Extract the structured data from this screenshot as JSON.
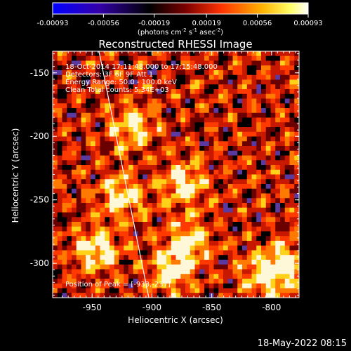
{
  "title": "Reconstructed RHESSI Image",
  "colorbar": {
    "ticks": [
      "-0.00093",
      "-0.00056",
      "-0.00019",
      "0.00019",
      "0.00056",
      "0.00093"
    ],
    "min": -0.00093,
    "max": 0.00093,
    "units": "(photons cm",
    "units_exp1": "-2",
    "units_mid1": " s",
    "units_exp2": "-1",
    "units_mid2": " asec",
    "units_exp3": "-2",
    "units_end": ")",
    "colors": [
      "#0000ff",
      "#3300aa",
      "#000000",
      "#ff5500",
      "#ffff66",
      "#ffffff"
    ]
  },
  "xaxis": {
    "label": "Heliocentric X (arcsec)",
    "ticks": [
      "-950",
      "-900",
      "-850",
      "-800"
    ],
    "range": [
      -983,
      -777
    ]
  },
  "yaxis": {
    "label": "Heliocentric Y (arcsec)",
    "ticks": [
      "-150",
      "-200",
      "-250",
      "-300"
    ],
    "range": [
      -327,
      -133
    ]
  },
  "annotation": {
    "line1": "18-Oct-2014 17:11:48.000 to 17:15:48.000",
    "line2": "Detectors: 3F 6F 9F  Att 1",
    "line3": "Energy Range: 50.0 - 100.0 keV",
    "line4": "Clean    Total counts: 5.34E+03",
    "peak": "Position of Peak = [-933,-237]"
  },
  "image_colors": {
    "deep": "#2a1060",
    "purple": "#5a3aa0",
    "red": "#c81800",
    "orange": "#ff7a00",
    "yellow": "#ffd21a",
    "white": "#fff8d8"
  },
  "limb_color": "#ffffff",
  "timestamp": "18-May-2022 08:15"
}
